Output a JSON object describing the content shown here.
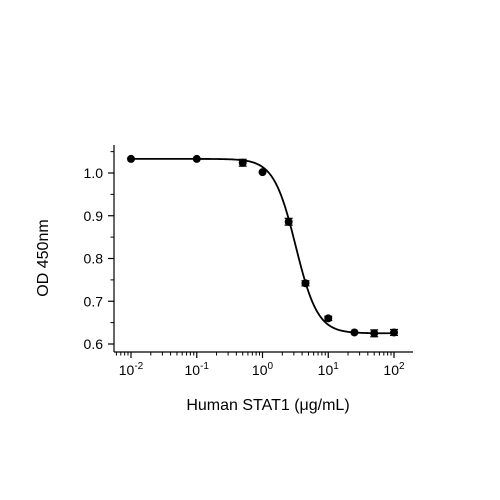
{
  "chart_data": {
    "type": "scatter",
    "title": "",
    "xlabel": "Human STAT1 (μg/mL)",
    "ylabel": "OD 450nm",
    "x_scale": "log",
    "xlim": [
      0.005,
      200
    ],
    "ylim": [
      0.59,
      1.06
    ],
    "x_ticks": [
      {
        "value": 0.01,
        "base": "10",
        "exp": "-2"
      },
      {
        "value": 0.1,
        "base": "10",
        "exp": "-1"
      },
      {
        "value": 1,
        "base": "10",
        "exp": "0"
      },
      {
        "value": 10,
        "base": "10",
        "exp": "1"
      },
      {
        "value": 100,
        "base": "10",
        "exp": "2"
      }
    ],
    "y_ticks": [
      "0.6",
      "0.7",
      "0.8",
      "0.9",
      "1.0"
    ],
    "grid": false,
    "legend": "none",
    "series": [
      {
        "x": [
          0.01,
          0.1,
          0.5,
          1,
          2.5,
          4.5,
          10,
          25,
          50,
          100
        ],
        "y": [
          1.033,
          1.033,
          1.024,
          1.002,
          0.886,
          0.742,
          0.66,
          0.627,
          0.625,
          0.627
        ],
        "err": [
          0.0,
          0.0,
          0.008,
          0.0,
          0.008,
          0.006,
          0.005,
          0.0,
          0.008,
          0.007
        ],
        "fit": {
          "model": "4PL",
          "top": 1.033,
          "bottom": 0.625,
          "ec50": 3.2,
          "hill": 2.6
        }
      }
    ],
    "colors": {
      "marker": "#000000",
      "line": "#000000"
    }
  }
}
